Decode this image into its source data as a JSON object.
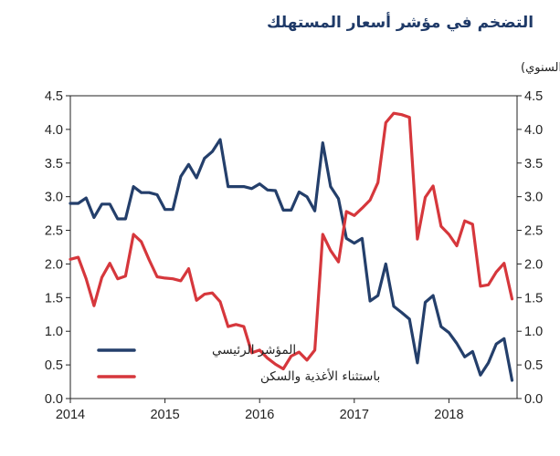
{
  "chart_data": {
    "type": "line",
    "title": "التضخم في مؤشر أسعار المستهلك",
    "ylabel": "(٪ النمو السنوي)",
    "ylim": [
      0,
      4.5
    ],
    "yticks": [
      "0.0",
      "0.5",
      "1.0",
      "1.5",
      "2.0",
      "2.5",
      "3.0",
      "3.5",
      "4.0",
      "4.5"
    ],
    "xlim": [
      2014,
      2018.72
    ],
    "xticks": [
      "2014",
      "2015",
      "2016",
      "2017",
      "2018"
    ],
    "grid": false,
    "legend_position": "bottom-left",
    "series": [
      {
        "name": "المؤشر الرئيسي",
        "color": "#243f6b",
        "x": [
          2014.0,
          2014.083,
          2014.167,
          2014.25,
          2014.333,
          2014.417,
          2014.5,
          2014.583,
          2014.667,
          2014.75,
          2014.833,
          2014.917,
          2015.0,
          2015.083,
          2015.167,
          2015.25,
          2015.333,
          2015.417,
          2015.5,
          2015.583,
          2015.667,
          2015.75,
          2015.833,
          2015.917,
          2016.0,
          2016.083,
          2016.167,
          2016.25,
          2016.333,
          2016.417,
          2016.5,
          2016.583,
          2016.667,
          2016.75,
          2016.833,
          2016.917,
          2017.0,
          2017.083,
          2017.167,
          2017.25,
          2017.333,
          2017.417,
          2017.5,
          2017.583,
          2017.667,
          2017.75,
          2017.833,
          2017.917,
          2018.0,
          2018.083,
          2018.167,
          2018.25,
          2018.333,
          2018.417,
          2018.5,
          2018.583,
          2018.667
        ],
        "values": [
          2.9,
          2.9,
          2.98,
          2.69,
          2.89,
          2.89,
          2.67,
          2.67,
          3.15,
          3.06,
          3.06,
          3.03,
          2.81,
          2.81,
          3.3,
          3.48,
          3.28,
          3.57,
          3.67,
          3.85,
          3.15,
          3.15,
          3.15,
          3.12,
          3.19,
          3.1,
          3.09,
          2.8,
          2.8,
          3.07,
          3.0,
          2.79,
          3.8,
          3.15,
          2.97,
          2.38,
          2.31,
          2.38,
          1.45,
          1.53,
          2.0,
          1.37,
          1.28,
          1.18,
          0.53,
          1.43,
          1.53,
          1.07,
          0.98,
          0.82,
          0.62,
          0.7,
          0.35,
          0.53,
          0.81,
          0.89,
          0.27
        ]
      },
      {
        "name": "باستثناء الأغذية والسكن",
        "color": "#d6373c",
        "x": [
          2014.0,
          2014.083,
          2014.167,
          2014.25,
          2014.333,
          2014.417,
          2014.5,
          2014.583,
          2014.667,
          2014.75,
          2014.833,
          2014.917,
          2015.0,
          2015.083,
          2015.167,
          2015.25,
          2015.333,
          2015.417,
          2015.5,
          2015.583,
          2015.667,
          2015.75,
          2015.833,
          2015.917,
          2016.0,
          2016.083,
          2016.167,
          2016.25,
          2016.333,
          2016.417,
          2016.5,
          2016.583,
          2016.667,
          2016.75,
          2016.833,
          2016.917,
          2017.0,
          2017.083,
          2017.167,
          2017.25,
          2017.333,
          2017.417,
          2017.5,
          2017.583,
          2017.667,
          2017.75,
          2017.833,
          2017.917,
          2018.0,
          2018.083,
          2018.167,
          2018.25,
          2018.333,
          2018.417,
          2018.5,
          2018.583,
          2018.667
        ],
        "values": [
          2.07,
          2.1,
          1.78,
          1.38,
          1.8,
          2.01,
          1.78,
          1.82,
          2.44,
          2.33,
          2.06,
          1.81,
          1.79,
          1.78,
          1.75,
          1.93,
          1.46,
          1.55,
          1.57,
          1.44,
          1.07,
          1.1,
          1.07,
          0.68,
          0.72,
          0.6,
          0.51,
          0.44,
          0.63,
          0.69,
          0.57,
          0.72,
          2.44,
          2.2,
          2.03,
          2.78,
          2.72,
          2.83,
          2.95,
          3.21,
          4.1,
          4.24,
          4.22,
          4.18,
          2.37,
          2.99,
          3.16,
          2.56,
          2.44,
          2.27,
          2.64,
          2.59,
          1.67,
          1.69,
          1.88,
          2.01,
          1.48
        ]
      }
    ]
  }
}
